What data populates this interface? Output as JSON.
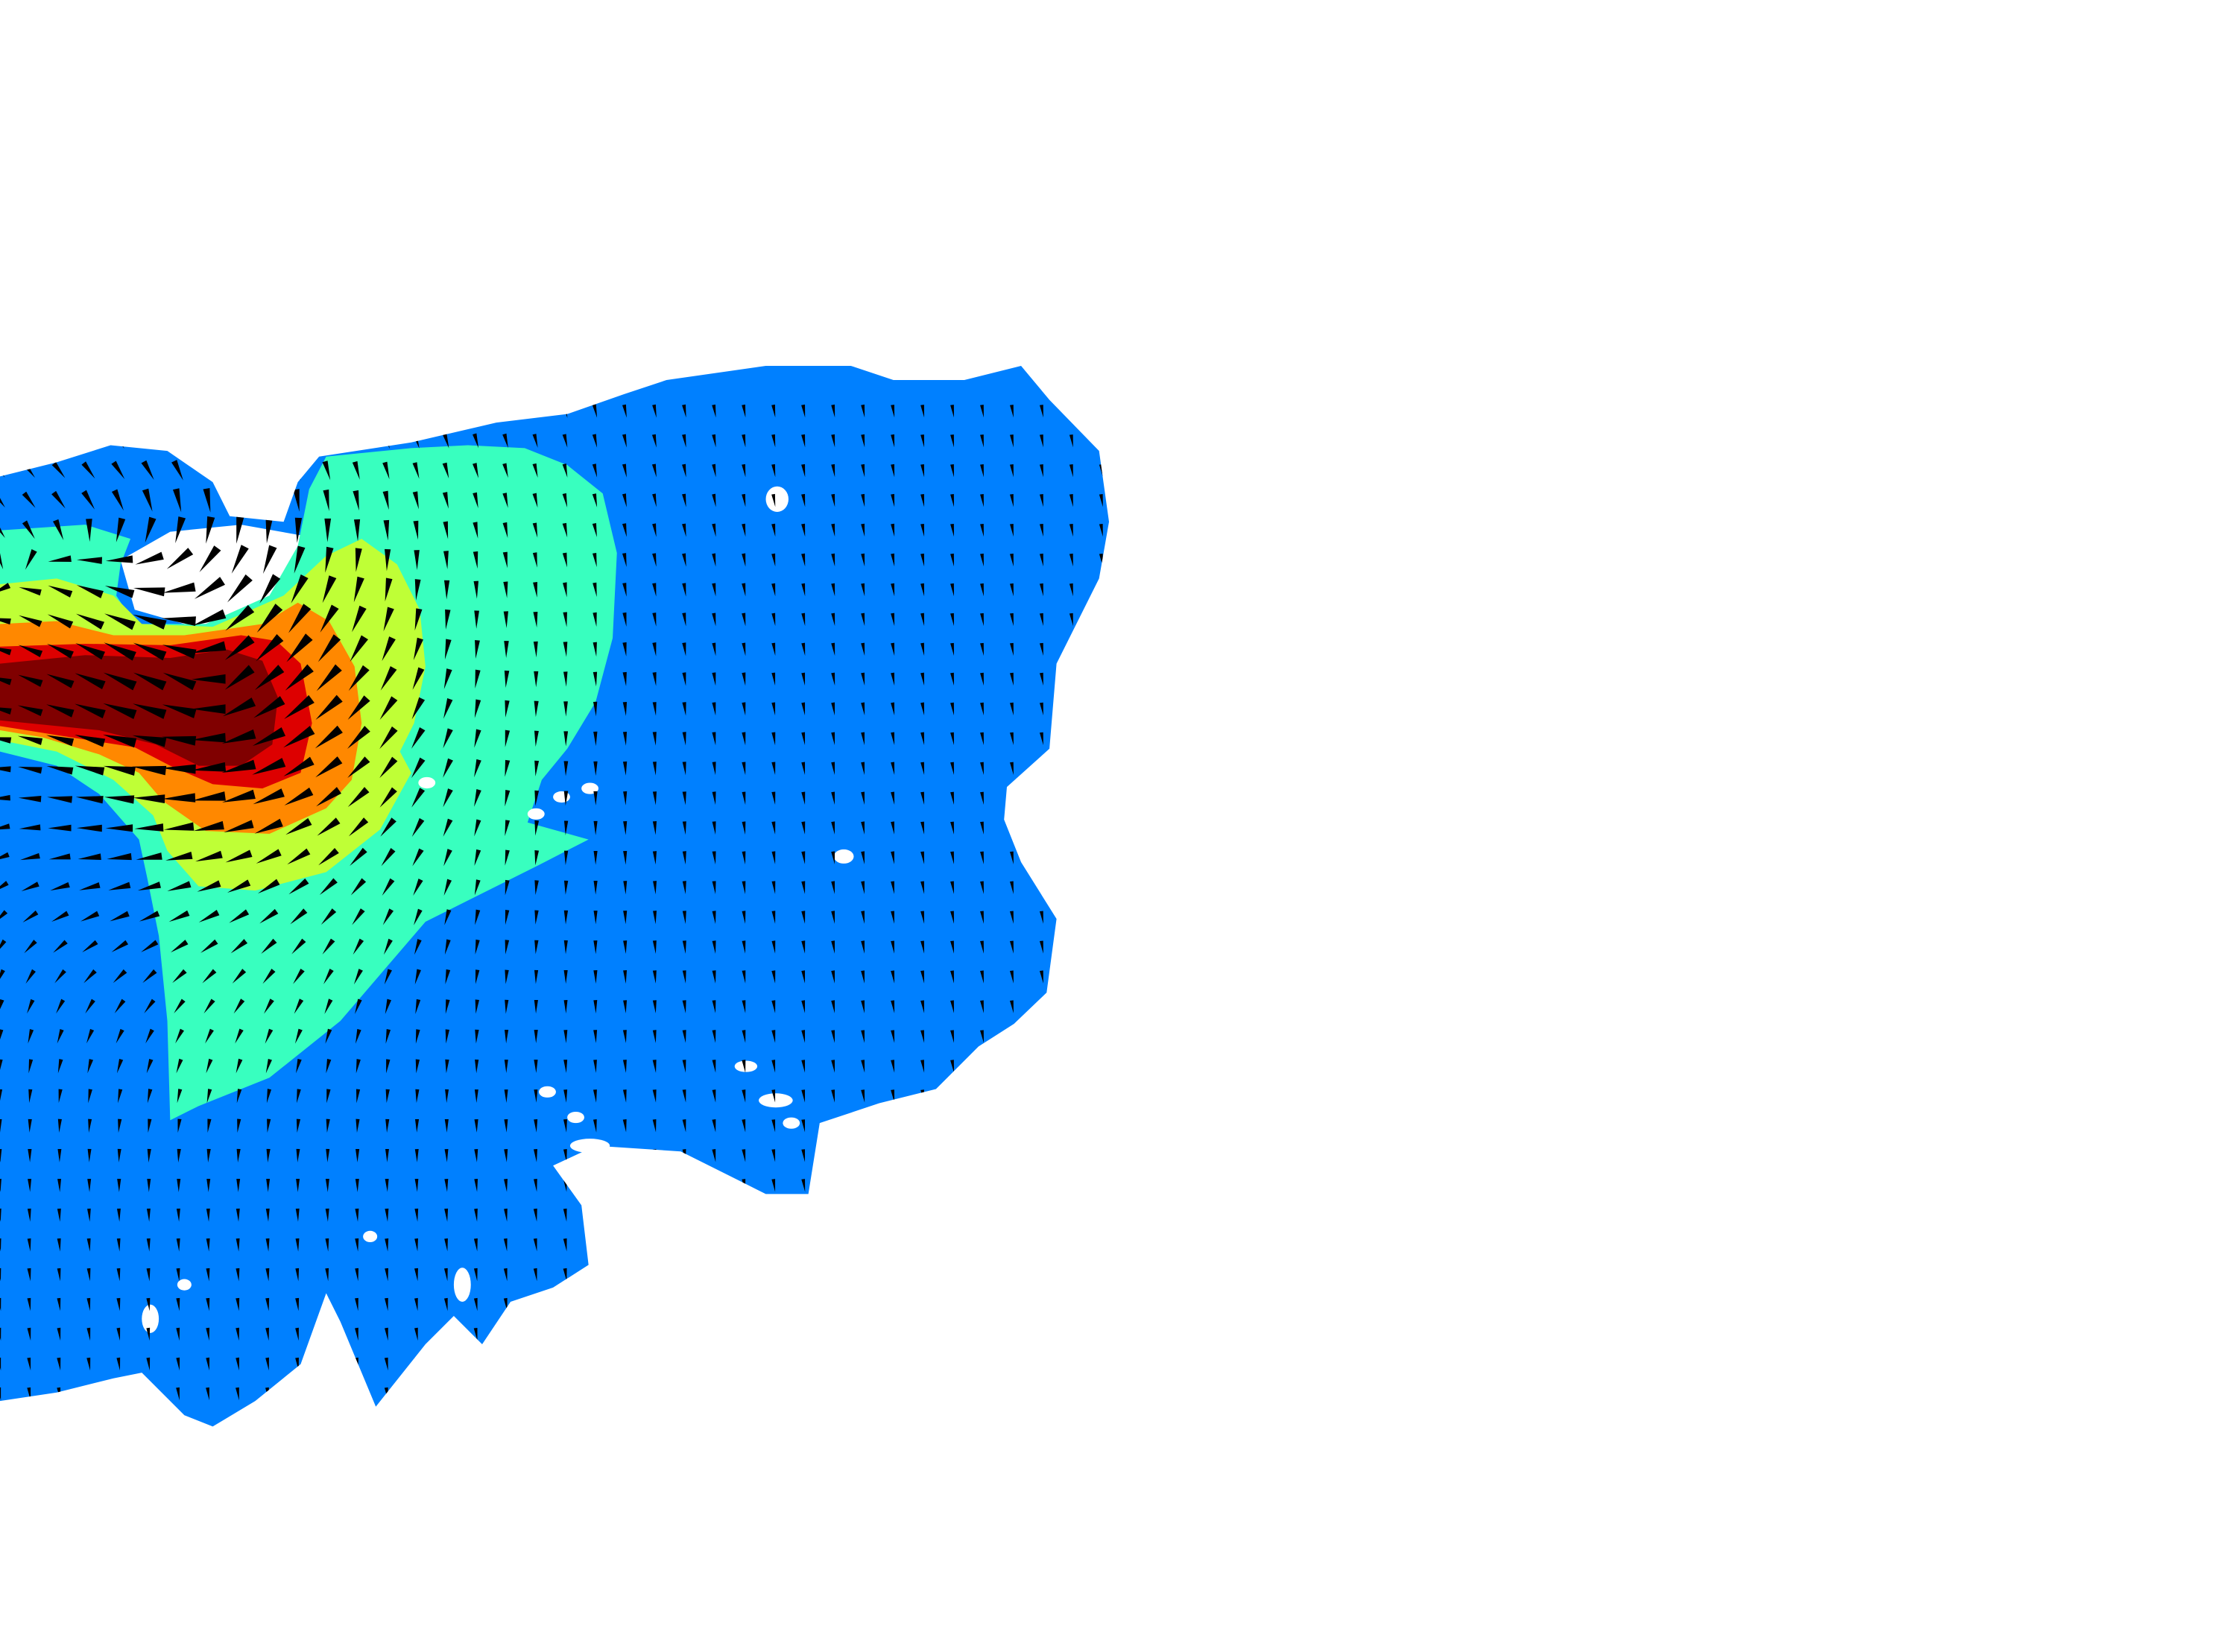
{
  "chart_data": {
    "type": "heatmap",
    "subtype": "filled-contour-with-quiver",
    "title": "",
    "xlabel": "",
    "ylabel": "",
    "axes_visible": false,
    "grid": false,
    "legend": "none",
    "background_color": "#ffffff",
    "arrow_color": "#000000",
    "levels": [
      {
        "level": 1,
        "name": "",
        "color": "#0080ff"
      },
      {
        "level": 2,
        "name": "",
        "color": "#38ffbf"
      },
      {
        "level": 3,
        "name": "",
        "color": "#bfff36"
      },
      {
        "level": 4,
        "name": "",
        "color": "#ff8800"
      },
      {
        "level": 5,
        "name": "",
        "color": "#dd0000"
      },
      {
        "level": 6,
        "name": "",
        "color": "#800000"
      }
    ],
    "flow_direction": "towards-upper-left",
    "max_intensity_region": "upper-left"
  }
}
